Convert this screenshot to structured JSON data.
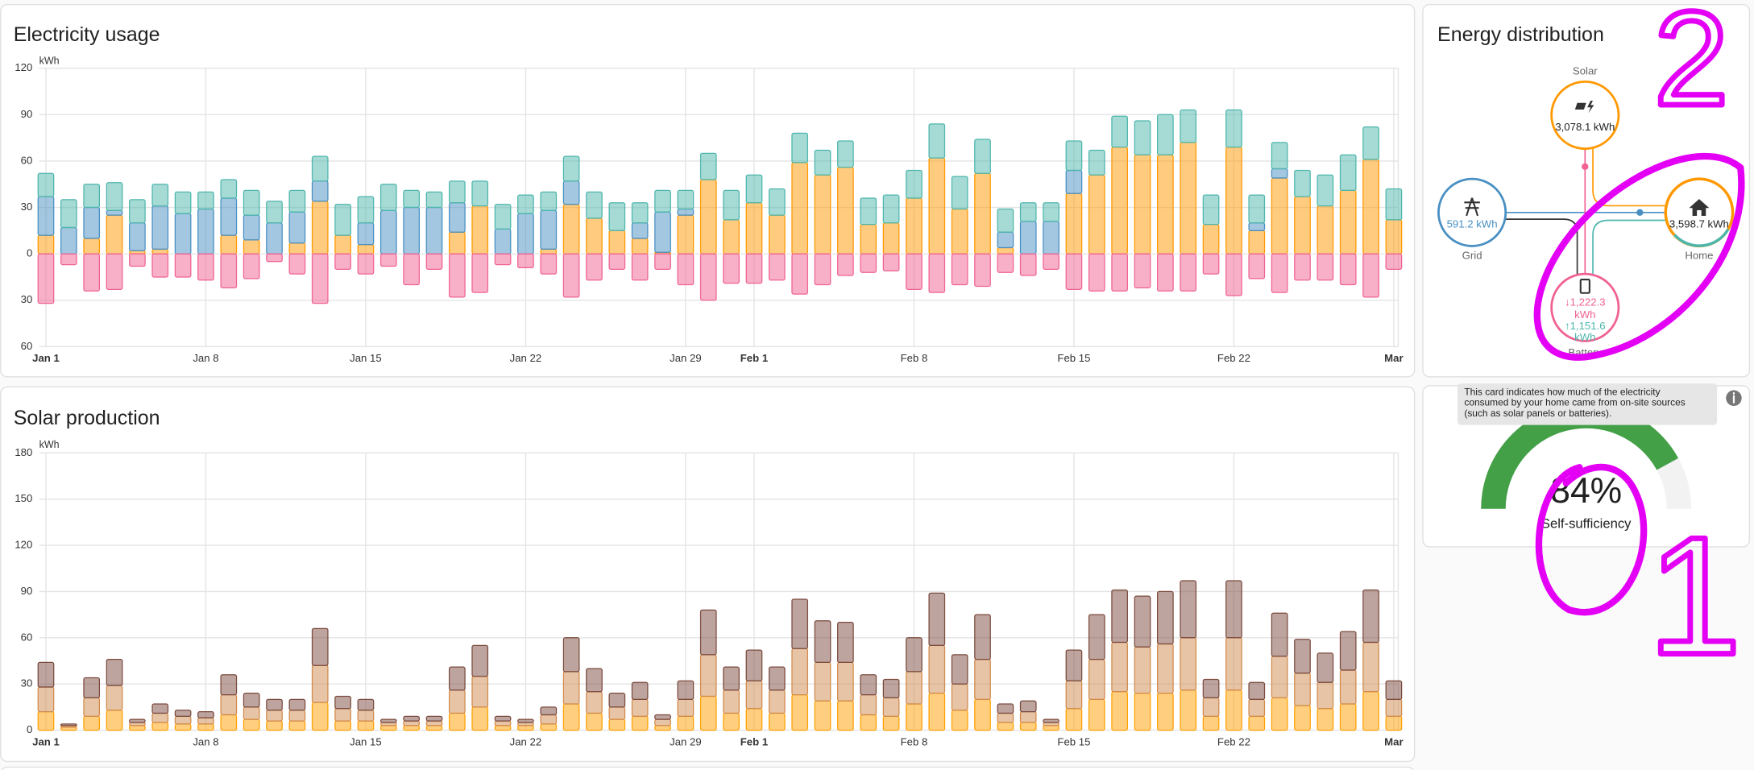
{
  "chart_data": [
    {
      "type": "bar",
      "title": "Electricity usage",
      "y_label": "kWh",
      "categories": [
        "Jan 1",
        null,
        null,
        null,
        null,
        null,
        null,
        "Jan 8",
        null,
        null,
        null,
        null,
        null,
        null,
        "Jan 15",
        null,
        null,
        null,
        null,
        null,
        null,
        "Jan 22",
        null,
        null,
        null,
        null,
        null,
        null,
        "Jan 29",
        null,
        null,
        "Feb 1",
        null,
        null,
        null,
        null,
        null,
        null,
        "Feb 8",
        null,
        null,
        null,
        null,
        null,
        null,
        "Feb 15",
        null,
        null,
        null,
        null,
        null,
        null,
        "Feb 22",
        null,
        null,
        null,
        null,
        null,
        null,
        "Mar"
      ],
      "ylim": [
        -60,
        120
      ],
      "yticks": [
        {
          "value": -60,
          "label": "60"
        },
        {
          "value": -30,
          "label": "30"
        },
        0,
        30,
        60,
        90,
        120
      ],
      "grid": true,
      "series": [
        {
          "color": "#ff9800",
          "values": [
            12,
            0,
            10,
            25,
            2,
            3,
            0,
            0,
            12,
            9,
            0,
            7,
            34,
            12,
            6,
            0,
            0,
            0,
            14,
            31,
            0,
            0,
            3,
            32,
            23,
            15,
            10,
            1,
            25,
            48,
            22,
            33,
            25,
            59,
            51,
            56,
            19,
            20,
            36,
            62,
            29,
            52,
            4,
            0,
            0,
            39,
            51,
            69,
            64,
            64,
            72,
            19,
            69,
            15,
            49,
            37,
            31,
            41,
            61,
            22
          ]
        },
        {
          "color": "#488fc2",
          "values": [
            25,
            17,
            20,
            3,
            18,
            28,
            26,
            29,
            24,
            16,
            20,
            20,
            13,
            0,
            14,
            28,
            30,
            30,
            19,
            0,
            16,
            26,
            25,
            15,
            0,
            0,
            10,
            26,
            4,
            0,
            0,
            0,
            0,
            0,
            0,
            0,
            0,
            0,
            0,
            0,
            0,
            0,
            10,
            21,
            21,
            15,
            0,
            0,
            0,
            0,
            0,
            0,
            0,
            5,
            6,
            0,
            0,
            0,
            0,
            0
          ]
        },
        {
          "color": "#4db6ac",
          "values": [
            15,
            18,
            15,
            18,
            15,
            14,
            14,
            11,
            12,
            16,
            14,
            14,
            16,
            20,
            17,
            17,
            11,
            10,
            14,
            16,
            16,
            12,
            12,
            16,
            17,
            18,
            13,
            14,
            12,
            17,
            19,
            18,
            17,
            19,
            16,
            17,
            17,
            18,
            18,
            22,
            21,
            22,
            15,
            12,
            12,
            19,
            16,
            20,
            22,
            26,
            21,
            19,
            24,
            18,
            17,
            17,
            20,
            23,
            21,
            20
          ]
        },
        {
          "color": "#f06292",
          "values": [
            -32,
            -7,
            -24,
            -23,
            -8,
            -15,
            -15,
            -17,
            -22,
            -16,
            -5,
            -13,
            -32,
            -10,
            -13,
            -8,
            -20,
            -10,
            -28,
            -25,
            -7,
            -9,
            -13,
            -28,
            -17,
            -10,
            -17,
            -10,
            -20,
            -30,
            -19,
            -19,
            -17,
            -26,
            -20,
            -14,
            -12,
            -11,
            -23,
            -25,
            -20,
            -21,
            -12,
            -14,
            -10,
            -23,
            -24,
            -24,
            -22,
            -24,
            -24,
            -13,
            -27,
            -16,
            -25,
            -17,
            -17,
            -20,
            -28,
            -10
          ]
        }
      ]
    },
    {
      "type": "bar",
      "title": "Solar production",
      "y_label": "kWh",
      "categories": [
        "Jan 1",
        null,
        null,
        null,
        null,
        null,
        null,
        "Jan 8",
        null,
        null,
        null,
        null,
        null,
        null,
        "Jan 15",
        null,
        null,
        null,
        null,
        null,
        null,
        "Jan 22",
        null,
        null,
        null,
        null,
        null,
        null,
        "Jan 29",
        null,
        null,
        "Feb 1",
        null,
        null,
        null,
        null,
        null,
        null,
        "Feb 8",
        null,
        null,
        null,
        null,
        null,
        null,
        "Feb 15",
        null,
        null,
        null,
        null,
        null,
        null,
        "Feb 22",
        null,
        null,
        null,
        null,
        null,
        null,
        "Mar"
      ],
      "ylim": [
        0,
        180
      ],
      "yticks": [
        0,
        30,
        60,
        90,
        120,
        150,
        180
      ],
      "grid": true,
      "series": [
        {
          "color": "#ffa000",
          "values": [
            12,
            2,
            9,
            13,
            3,
            5,
            4,
            4,
            10,
            7,
            6,
            6,
            18,
            6,
            6,
            3,
            3,
            3,
            11,
            15,
            3,
            3,
            4,
            17,
            11,
            7,
            9,
            3,
            9,
            22,
            11,
            14,
            11,
            23,
            19,
            19,
            10,
            9,
            17,
            24,
            13,
            20,
            5,
            5,
            3,
            14,
            20,
            25,
            24,
            24,
            26,
            9,
            26,
            9,
            21,
            16,
            14,
            17,
            25,
            9
          ]
        },
        {
          "color": "#d08a4c",
          "values": [
            16,
            1,
            12,
            16,
            2,
            6,
            5,
            4,
            13,
            8,
            7,
            7,
            24,
            8,
            7,
            2,
            3,
            3,
            15,
            20,
            3,
            2,
            6,
            21,
            14,
            8,
            11,
            4,
            11,
            27,
            15,
            18,
            15,
            30,
            25,
            25,
            13,
            12,
            21,
            31,
            17,
            26,
            6,
            7,
            2,
            18,
            26,
            32,
            30,
            32,
            34,
            12,
            34,
            11,
            27,
            21,
            17,
            22,
            32,
            11
          ]
        },
        {
          "color": "#7b4a3e",
          "values": [
            16,
            1,
            13,
            17,
            2,
            6,
            4,
            4,
            13,
            9,
            7,
            7,
            24,
            8,
            7,
            2,
            3,
            3,
            15,
            20,
            3,
            2,
            5,
            22,
            15,
            9,
            11,
            3,
            12,
            29,
            15,
            20,
            15,
            32,
            27,
            26,
            13,
            12,
            22,
            34,
            19,
            29,
            6,
            7,
            2,
            20,
            29,
            34,
            33,
            34,
            37,
            12,
            37,
            11,
            28,
            22,
            19,
            25,
            34,
            12
          ]
        }
      ]
    }
  ],
  "energy_distribution": {
    "title": "Energy distribution",
    "solar": {
      "label": "Solar",
      "value": "3,078.1 kWh"
    },
    "grid": {
      "label": "Grid",
      "value": "591.2 kWh"
    },
    "home": {
      "label": "Home",
      "value": "3,598.7 kWh"
    },
    "battery": {
      "label": "Battery",
      "in": "↓1,222.3",
      "in_unit": "kWh",
      "out": "↑1,151.6",
      "out_unit": "kWh"
    }
  },
  "self_sufficiency": {
    "tooltip": [
      "This card indicates how much of the electricity",
      "consumed by your home came from on-site sources",
      "(such as solar panels or batteries)."
    ],
    "value": 84,
    "value_label": "84%",
    "range": [
      0,
      100
    ],
    "label": "Self-sufficiency",
    "color": "#43a047"
  },
  "annotations": [
    "2",
    "1"
  ]
}
